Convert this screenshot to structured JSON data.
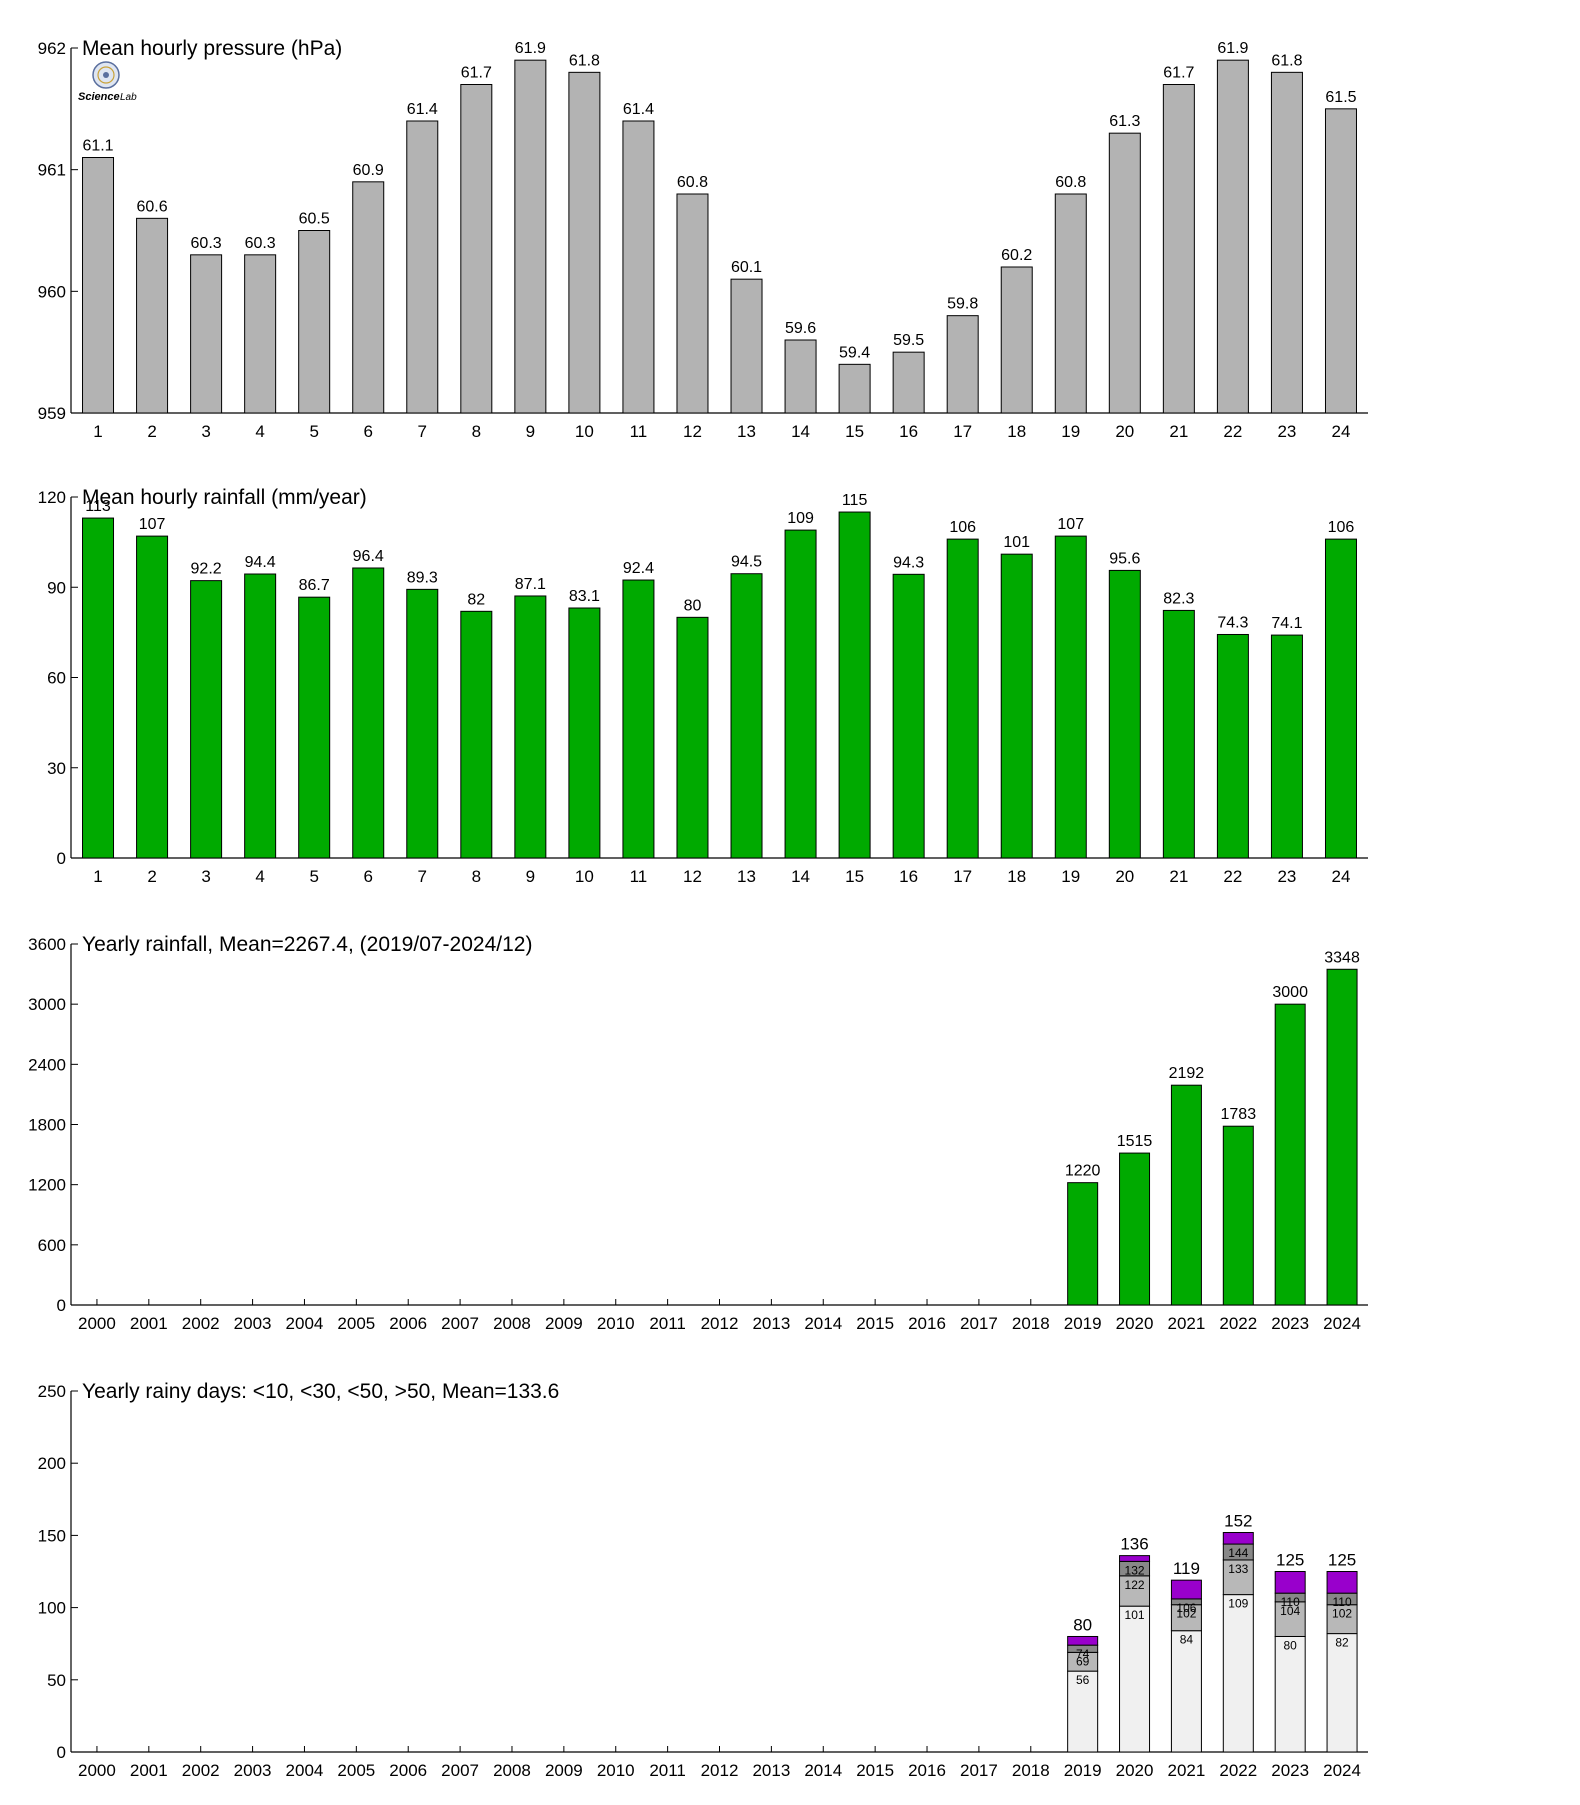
{
  "colors": {
    "pressure_bar": "#b3b3b3",
    "rain_bar": "#00aa00",
    "days_lt10": "#f0f0f0",
    "days_lt30": "#b8b8b8",
    "days_lt50": "#888888",
    "days_gt50": "#9900cc"
  },
  "logo": {
    "text_left": "Science",
    "text_right": "Lab"
  },
  "chart_data": [
    {
      "type": "bar",
      "title": "Mean hourly pressure (hPa)",
      "categories": [
        "1",
        "2",
        "3",
        "4",
        "5",
        "6",
        "7",
        "8",
        "9",
        "10",
        "11",
        "12",
        "13",
        "14",
        "15",
        "16",
        "17",
        "18",
        "19",
        "20",
        "21",
        "22",
        "23",
        "24"
      ],
      "values": [
        961.1,
        960.6,
        960.3,
        960.3,
        960.5,
        960.9,
        961.4,
        961.7,
        961.9,
        961.8,
        961.4,
        960.8,
        960.1,
        959.6,
        959.4,
        959.5,
        959.8,
        960.2,
        960.8,
        961.3,
        961.7,
        961.9,
        961.8,
        961.5
      ],
      "data_labels": [
        "61.1",
        "60.6",
        "60.3",
        "60.3",
        "60.5",
        "60.9",
        "61.4",
        "61.7",
        "61.9",
        "61.8",
        "61.4",
        "60.8",
        "60.1",
        "59.6",
        "59.4",
        "59.5",
        "59.8",
        "60.2",
        "60.8",
        "61.3",
        "61.7",
        "61.9",
        "61.8",
        "61.5"
      ],
      "ylim": [
        959,
        962
      ],
      "yticks": [
        "959",
        "960",
        "961",
        "962"
      ],
      "grid": false
    },
    {
      "type": "bar",
      "title": "Mean hourly rainfall (mm/year)",
      "categories": [
        "1",
        "2",
        "3",
        "4",
        "5",
        "6",
        "7",
        "8",
        "9",
        "10",
        "11",
        "12",
        "13",
        "14",
        "15",
        "16",
        "17",
        "18",
        "19",
        "20",
        "21",
        "22",
        "23",
        "24"
      ],
      "values": [
        113,
        107,
        92.2,
        94.4,
        86.7,
        96.4,
        89.3,
        82,
        87.1,
        83.1,
        92.4,
        80,
        94.5,
        109,
        115,
        94.3,
        106,
        101,
        107,
        95.6,
        82.3,
        74.3,
        74.1,
        106
      ],
      "data_labels": [
        "113",
        "107",
        "92.2",
        "94.4",
        "86.7",
        "96.4",
        "89.3",
        "82",
        "87.1",
        "83.1",
        "92.4",
        "80",
        "94.5",
        "109",
        "115",
        "94.3",
        "106",
        "101",
        "107",
        "95.6",
        "82.3",
        "74.3",
        "74.1",
        "106"
      ],
      "ylim": [
        0,
        120
      ],
      "yticks": [
        "0",
        "30",
        "60",
        "90",
        "120"
      ],
      "grid": false
    },
    {
      "type": "bar",
      "title": "Yearly rainfall, Mean=2267.4, (2019/07-2024/12)",
      "categories": [
        "2000",
        "2001",
        "2002",
        "2003",
        "2004",
        "2005",
        "2006",
        "2007",
        "2008",
        "2009",
        "2010",
        "2011",
        "2012",
        "2013",
        "2014",
        "2015",
        "2016",
        "2017",
        "2018",
        "2019",
        "2020",
        "2021",
        "2022",
        "2023",
        "2024"
      ],
      "values": [
        null,
        null,
        null,
        null,
        null,
        null,
        null,
        null,
        null,
        null,
        null,
        null,
        null,
        null,
        null,
        null,
        null,
        null,
        null,
        1220,
        1515,
        2192,
        1783,
        3000,
        3348
      ],
      "data_labels": [
        "",
        "",
        "",
        "",
        "",
        "",
        "",
        "",
        "",
        "",
        "",
        "",
        "",
        "",
        "",
        "",
        "",
        "",
        "",
        "1220",
        "1515",
        "2192",
        "1783",
        "3000",
        "3348"
      ],
      "ylim": [
        0,
        3600
      ],
      "yticks": [
        "0",
        "600",
        "1200",
        "1800",
        "2400",
        "3000",
        "3600"
      ],
      "grid": false
    },
    {
      "type": "bar",
      "stacked": true,
      "title": "Yearly rainy days: <10, <30, <50, >50, Mean=133.6",
      "categories": [
        "2000",
        "2001",
        "2002",
        "2003",
        "2004",
        "2005",
        "2006",
        "2007",
        "2008",
        "2009",
        "2010",
        "2011",
        "2012",
        "2013",
        "2014",
        "2015",
        "2016",
        "2017",
        "2018",
        "2019",
        "2020",
        "2021",
        "2022",
        "2023",
        "2024"
      ],
      "cumulative": [
        null,
        null,
        null,
        null,
        null,
        null,
        null,
        null,
        null,
        null,
        null,
        null,
        null,
        null,
        null,
        null,
        null,
        null,
        null,
        [
          56,
          69,
          74,
          80
        ],
        [
          101,
          122,
          132,
          136
        ],
        [
          84,
          102,
          106,
          119
        ],
        [
          109,
          133,
          144,
          152
        ],
        [
          80,
          104,
          110,
          125
        ],
        [
          82,
          102,
          110,
          125
        ]
      ],
      "segment_labels": [
        null,
        null,
        null,
        null,
        null,
        null,
        null,
        null,
        null,
        null,
        null,
        null,
        null,
        null,
        null,
        null,
        null,
        null,
        null,
        [
          "56",
          "69",
          "74",
          "80"
        ],
        [
          "101",
          "122",
          "132",
          "136"
        ],
        [
          "84",
          "102",
          "106",
          "119"
        ],
        [
          "109",
          "133",
          "144",
          "152"
        ],
        [
          "80",
          "104",
          "110",
          "125"
        ],
        [
          "82",
          "102",
          "110",
          "125"
        ]
      ],
      "ylim": [
        0,
        250
      ],
      "yticks": [
        "0",
        "50",
        "100",
        "150",
        "200",
        "250"
      ],
      "grid": false
    }
  ]
}
